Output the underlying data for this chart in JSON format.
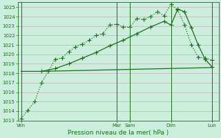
{
  "bg_color": "#cceedd",
  "grid_color": "#c0a0b5",
  "line_color": "#1a6b1a",
  "xlabel": "Pression niveau de la mer( hPa )",
  "ylim": [
    1013,
    1025.5
  ],
  "yticks": [
    1013,
    1014,
    1015,
    1016,
    1017,
    1018,
    1019,
    1020,
    1021,
    1022,
    1023,
    1024,
    1025
  ],
  "day_labels": [
    "Ven",
    "Mar",
    "Sam",
    "Dim",
    "Lun"
  ],
  "day_positions": [
    0,
    14,
    16,
    22,
    28
  ],
  "xlim": [
    -0.5,
    29
  ],
  "line1_x": [
    0,
    1,
    2,
    3,
    4,
    5,
    6,
    7,
    8,
    9,
    10,
    11,
    12,
    13,
    14,
    15,
    16,
    17,
    18,
    19,
    20,
    21,
    22,
    23,
    24,
    25,
    26,
    27,
    28
  ],
  "line1_y": [
    1013.2,
    1014.1,
    1015.0,
    1017.0,
    1018.2,
    1019.5,
    1019.6,
    1020.3,
    1020.8,
    1021.1,
    1021.5,
    1022.0,
    1022.2,
    1023.1,
    1023.2,
    1022.9,
    1022.9,
    1023.8,
    1023.7,
    1024.0,
    1024.5,
    1024.1,
    1025.3,
    1024.7,
    1023.1,
    1021.0,
    1019.7,
    1019.6,
    1019.4
  ],
  "line2_x": [
    0,
    3,
    28
  ],
  "line2_y": [
    1018.2,
    1018.2,
    1018.6
  ],
  "line3_x": [
    3,
    5,
    7,
    9,
    11,
    13,
    15,
    17,
    19,
    21,
    22,
    23,
    24,
    25,
    26,
    27,
    28
  ],
  "line3_y": [
    1018.2,
    1018.5,
    1019.0,
    1019.6,
    1020.2,
    1020.9,
    1021.5,
    1022.2,
    1022.9,
    1023.5,
    1023.1,
    1024.8,
    1024.5,
    1022.8,
    1021.0,
    1019.5,
    1018.7
  ],
  "markersize": 2.5,
  "linewidth": 0.9
}
